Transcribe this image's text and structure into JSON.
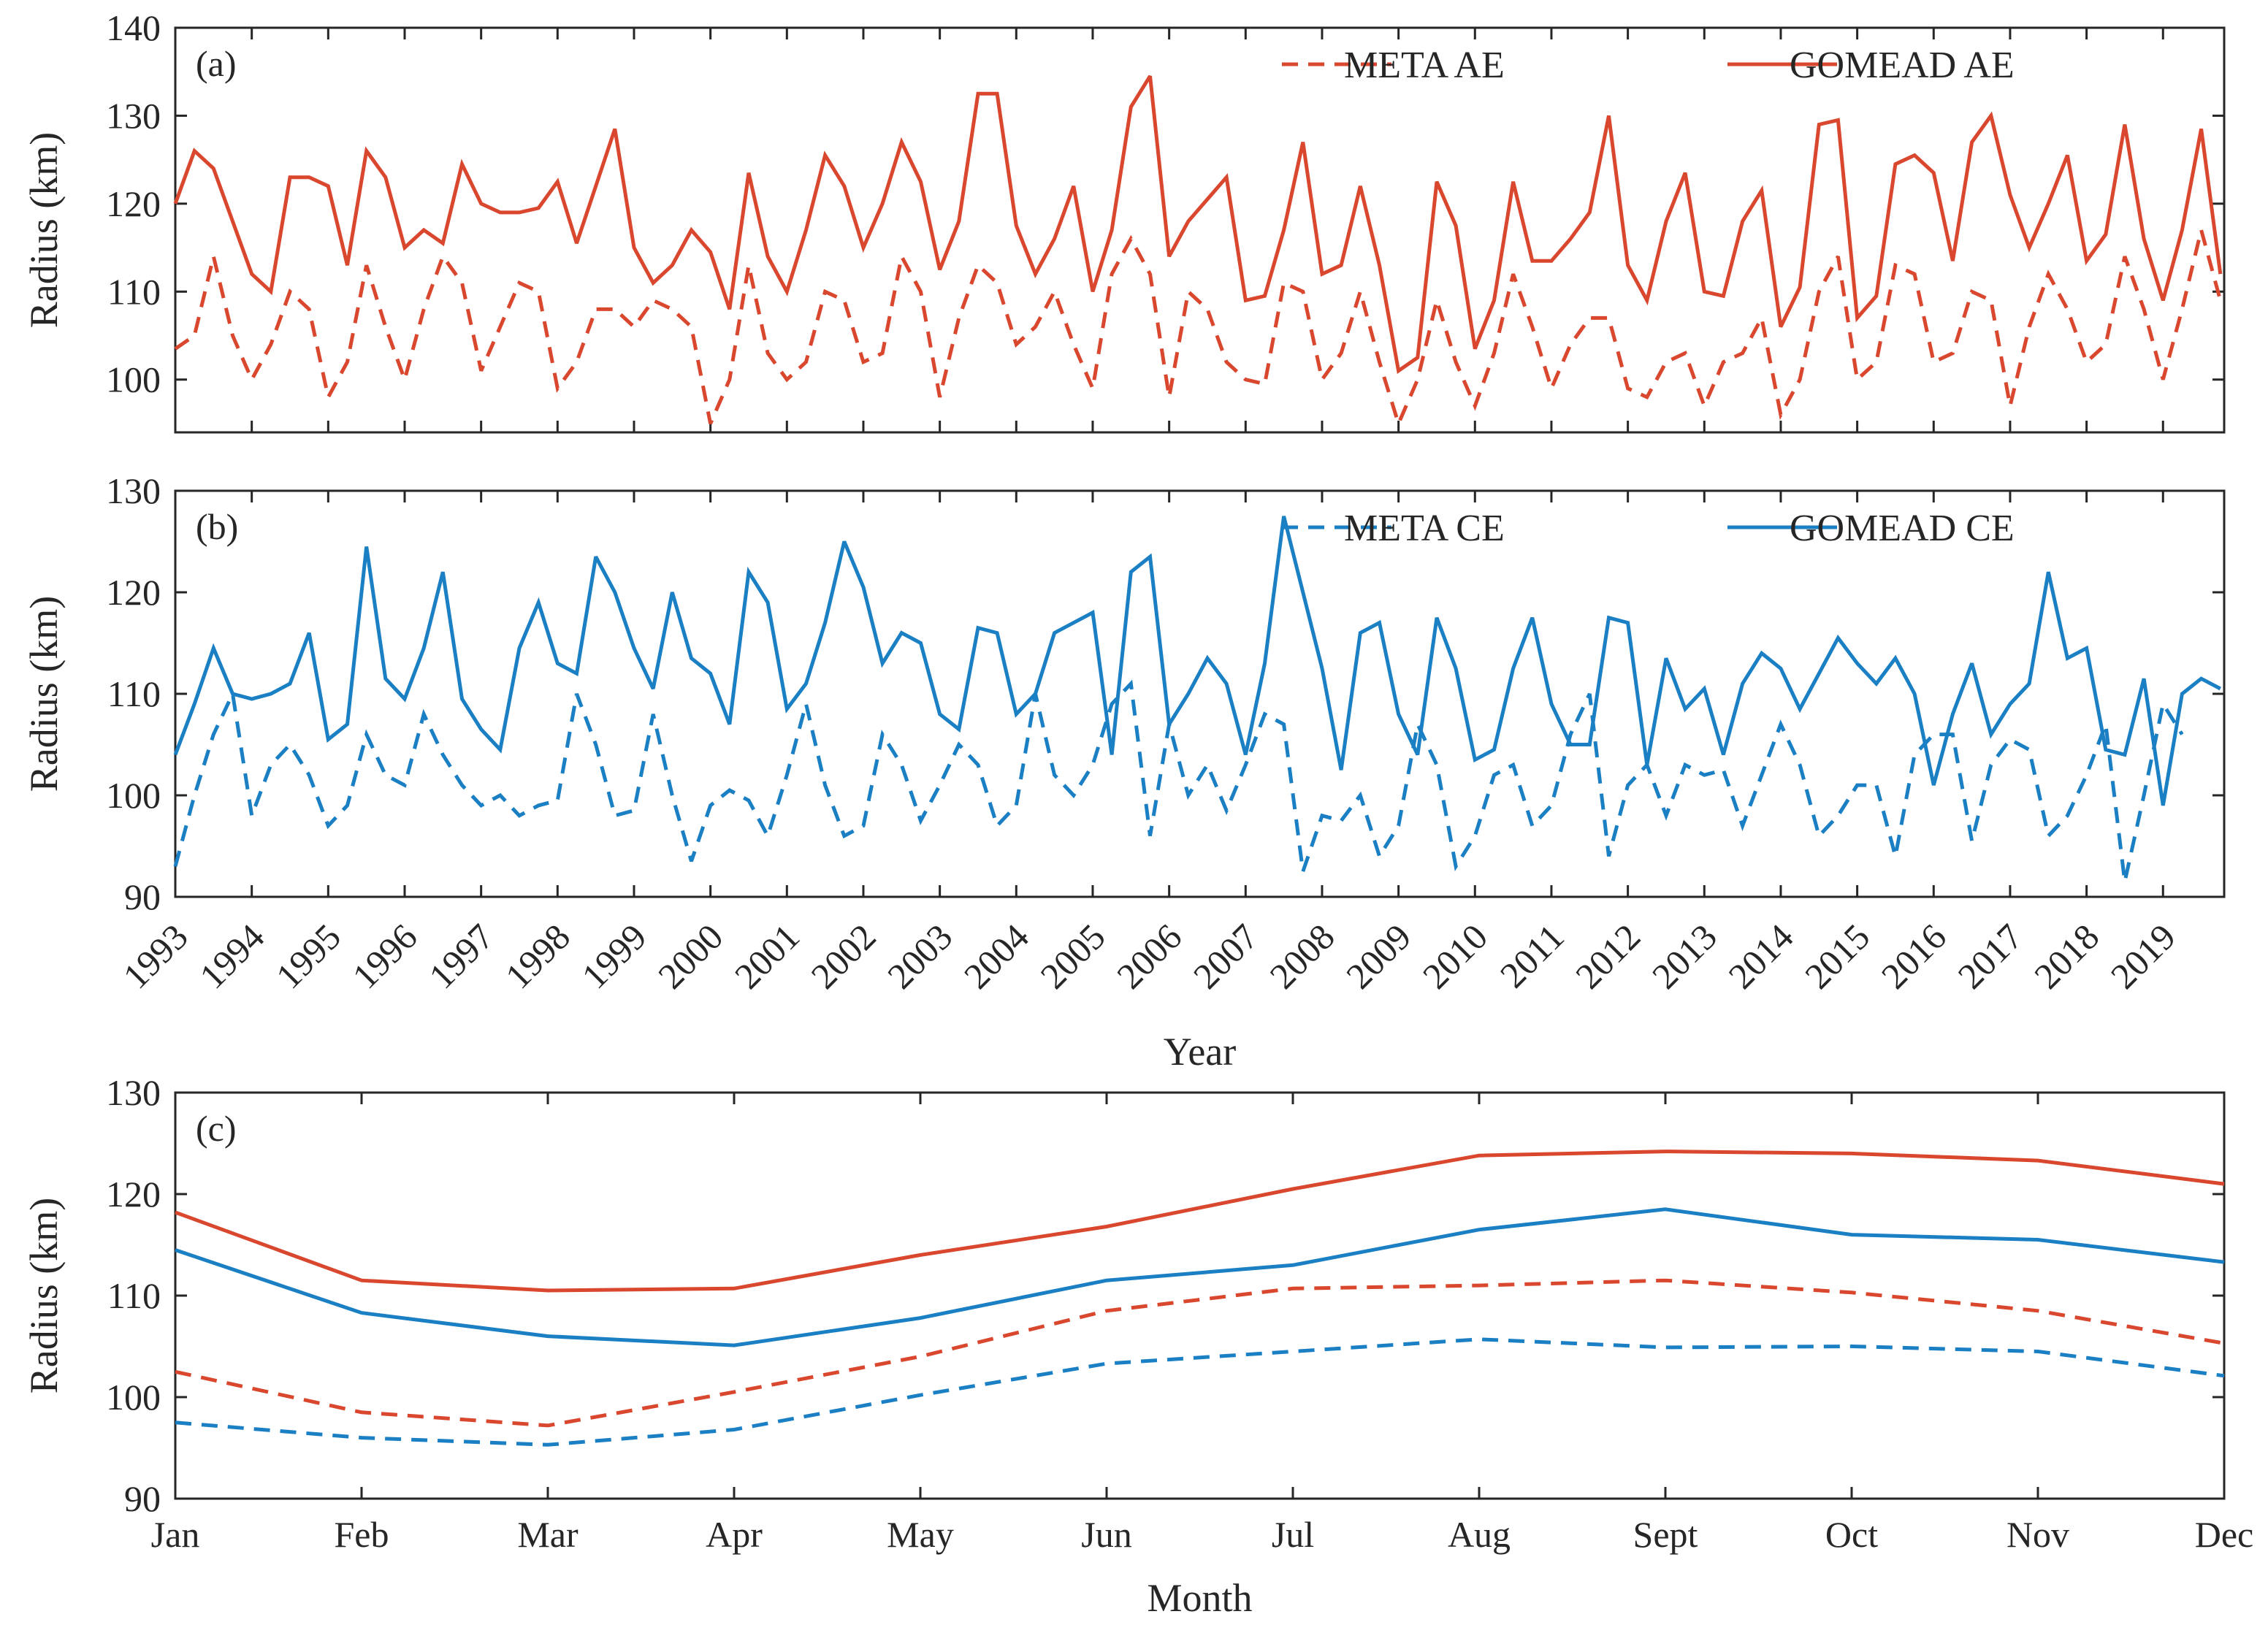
{
  "colors": {
    "ae": "#D9472E",
    "ce": "#1B7FC4",
    "axis": "#262626"
  },
  "chart_data": [
    {
      "type": "line",
      "panel": "(a)",
      "xlabel": "",
      "ylabel": "Radius (km)",
      "ylim": [
        94,
        140
      ],
      "yticks": [
        100,
        110,
        120,
        130,
        140
      ],
      "xlim": [
        1993,
        2019.8
      ],
      "xtick_years": [
        1993,
        1994,
        1995,
        1996,
        1997,
        1998,
        1999,
        2000,
        2001,
        2002,
        2003,
        2004,
        2005,
        2006,
        2007,
        2008,
        2009,
        2010,
        2011,
        2012,
        2013,
        2014,
        2015,
        2016,
        2017,
        2018,
        2019
      ],
      "xtick_labels_shown": false,
      "legend": "top-right",
      "sampling": "quarterly, starting 1993.0",
      "series": [
        {
          "name": "META AE",
          "style": "dashed",
          "color_key": "ae",
          "values": [
            103.5,
            105,
            114,
            105,
            100,
            104,
            110,
            108,
            98,
            102,
            113,
            106,
            100,
            108,
            114,
            111,
            101,
            106,
            111,
            110,
            99,
            102,
            108,
            108,
            106,
            109,
            108,
            106,
            95,
            100,
            113,
            103,
            100,
            102,
            110,
            109,
            102,
            103,
            114,
            110,
            98,
            107,
            113,
            111,
            104,
            106,
            110,
            104,
            99,
            112,
            116,
            112,
            98,
            110,
            108,
            102,
            100,
            99.5,
            111,
            110,
            100,
            103,
            110,
            102,
            95,
            100,
            109,
            102,
            97,
            103,
            112,
            106,
            99,
            104,
            107,
            107,
            99,
            98,
            102,
            103,
            97,
            102,
            103,
            107,
            96,
            100,
            110,
            114,
            100,
            102,
            113,
            112,
            102,
            103,
            110,
            109,
            97,
            106,
            112,
            108,
            102,
            104,
            114,
            108,
            100,
            108,
            117,
            109
          ]
        },
        {
          "name": "GOMEAD AE",
          "style": "solid",
          "color_key": "ae",
          "values": [
            120,
            126,
            124,
            118,
            112,
            110,
            123,
            123,
            122,
            113,
            126,
            123,
            115,
            117,
            115.5,
            124.5,
            120,
            119,
            119,
            119.5,
            122.5,
            115.5,
            122,
            128.5,
            115,
            111,
            113,
            117,
            114.5,
            108,
            123.5,
            114,
            110,
            117,
            125.5,
            122,
            115,
            120,
            127,
            122.5,
            112.5,
            118,
            132.5,
            132.5,
            117.5,
            112,
            116,
            122,
            110,
            117,
            131,
            134.5,
            114,
            118,
            120.5,
            123,
            109,
            109.5,
            117,
            127,
            112,
            113,
            122,
            113,
            101,
            102.5,
            122.5,
            117.5,
            103.5,
            109,
            122.5,
            113.5,
            113.5,
            116,
            119,
            130,
            113,
            109,
            118,
            123.5,
            110,
            109.5,
            118,
            121.5,
            106,
            110.5,
            129,
            129.5,
            107,
            109.5,
            124.5,
            125.5,
            123.5,
            113.5,
            127,
            130,
            121,
            115,
            120,
            125.5,
            113.5,
            116.5,
            129,
            116,
            109,
            117,
            128.5,
            112
          ]
        }
      ]
    },
    {
      "type": "line",
      "panel": "(b)",
      "xlabel": "Year",
      "ylabel": "Radius (km)",
      "ylim": [
        90,
        130
      ],
      "yticks": [
        90,
        100,
        110,
        120,
        130
      ],
      "xlim": [
        1993,
        2019.8
      ],
      "xtick_years": [
        1993,
        1994,
        1995,
        1996,
        1997,
        1998,
        1999,
        2000,
        2001,
        2002,
        2003,
        2004,
        2005,
        2006,
        2007,
        2008,
        2009,
        2010,
        2011,
        2012,
        2013,
        2014,
        2015,
        2016,
        2017,
        2018,
        2019
      ],
      "xtick_labels_shown": true,
      "legend": "top-right",
      "sampling": "quarterly, starting 1993.0",
      "series": [
        {
          "name": "META CE",
          "style": "dashed",
          "color_key": "ce",
          "values": [
            93,
            100,
            106,
            110,
            98,
            103,
            105,
            102,
            97,
            99,
            106,
            102,
            101,
            108,
            104,
            101,
            99,
            100,
            98,
            99,
            99.5,
            110,
            105,
            98,
            98.5,
            108,
            100,
            93.5,
            99,
            100.5,
            99.5,
            96,
            102,
            109,
            101,
            96,
            97,
            106,
            103,
            97.5,
            101,
            105,
            103,
            97,
            99,
            110,
            102,
            100,
            103,
            109,
            111,
            96,
            107,
            100,
            103,
            98.5,
            103,
            108,
            107,
            92.5,
            98,
            97.5,
            100,
            94,
            97,
            107,
            103,
            93,
            96,
            102,
            103,
            97,
            99,
            106,
            110,
            94,
            101,
            103,
            98,
            103,
            102,
            102.5,
            97,
            102,
            107,
            103,
            96,
            98,
            101,
            101,
            94,
            104,
            106,
            106,
            95.5,
            103,
            105.5,
            104.5,
            96,
            98,
            102,
            107,
            91.5,
            100,
            109,
            106
          ]
        },
        {
          "name": "GOMEAD CE",
          "style": "solid",
          "color_key": "ce",
          "values": [
            104,
            109,
            114.5,
            110,
            109.5,
            110,
            111,
            116,
            105.5,
            107,
            124.5,
            111.5,
            109.5,
            114.5,
            122,
            109.5,
            106.5,
            104.5,
            114.5,
            119,
            113,
            112,
            123.5,
            120,
            114.5,
            110.5,
            120,
            113.5,
            112,
            107,
            122,
            119,
            108.5,
            111,
            117,
            125,
            120.5,
            113,
            116,
            115,
            108,
            106.5,
            116.5,
            116,
            108,
            110,
            116,
            117,
            118,
            104,
            122,
            123.5,
            107,
            110,
            113.5,
            111,
            104,
            113,
            127.5,
            120,
            112.5,
            102.5,
            116,
            117,
            108,
            104,
            117.5,
            112.5,
            103.5,
            104.5,
            112.5,
            117.5,
            109,
            105,
            105,
            117.5,
            117,
            103,
            113.5,
            108.5,
            110.5,
            104,
            111,
            114,
            112.5,
            108.5,
            112,
            115.5,
            113,
            111,
            113.5,
            110,
            101,
            108,
            113,
            106,
            109,
            111,
            122,
            113.5,
            114.5,
            104.5,
            104,
            111.5,
            99,
            110,
            111.5,
            110.5
          ]
        }
      ]
    },
    {
      "type": "line",
      "panel": "(c)",
      "xlabel": "Month",
      "ylabel": "Radius (km)",
      "ylim": [
        90,
        130
      ],
      "yticks": [
        90,
        100,
        110,
        120,
        130
      ],
      "categories": [
        "Jan",
        "Feb",
        "Mar",
        "Apr",
        "May",
        "Jun",
        "Jul",
        "Aug",
        "Sept",
        "Oct",
        "Nov",
        "Dec"
      ],
      "legend": "none",
      "series": [
        {
          "name": "META AE",
          "style": "dashed",
          "color_key": "ae",
          "values": [
            102.5,
            98.5,
            97.2,
            100.5,
            104,
            108.5,
            110.7,
            111,
            111.5,
            110.3,
            108.5,
            105.3
          ]
        },
        {
          "name": "GOMEAD AE",
          "style": "solid",
          "color_key": "ae",
          "values": [
            118.2,
            111.5,
            110.5,
            110.7,
            114,
            116.8,
            120.5,
            123.8,
            124.2,
            124,
            123.3,
            121
          ]
        },
        {
          "name": "META CE",
          "style": "dashed",
          "color_key": "ce",
          "values": [
            97.5,
            96,
            95.3,
            96.8,
            100.2,
            103.3,
            104.5,
            105.7,
            104.9,
            105,
            104.5,
            102.1
          ]
        },
        {
          "name": "GOMEAD CE",
          "style": "solid",
          "color_key": "ce",
          "values": [
            114.5,
            108.3,
            106,
            105.1,
            107.8,
            111.5,
            113,
            116.5,
            118.5,
            116,
            115.5,
            113.3
          ]
        }
      ]
    }
  ]
}
